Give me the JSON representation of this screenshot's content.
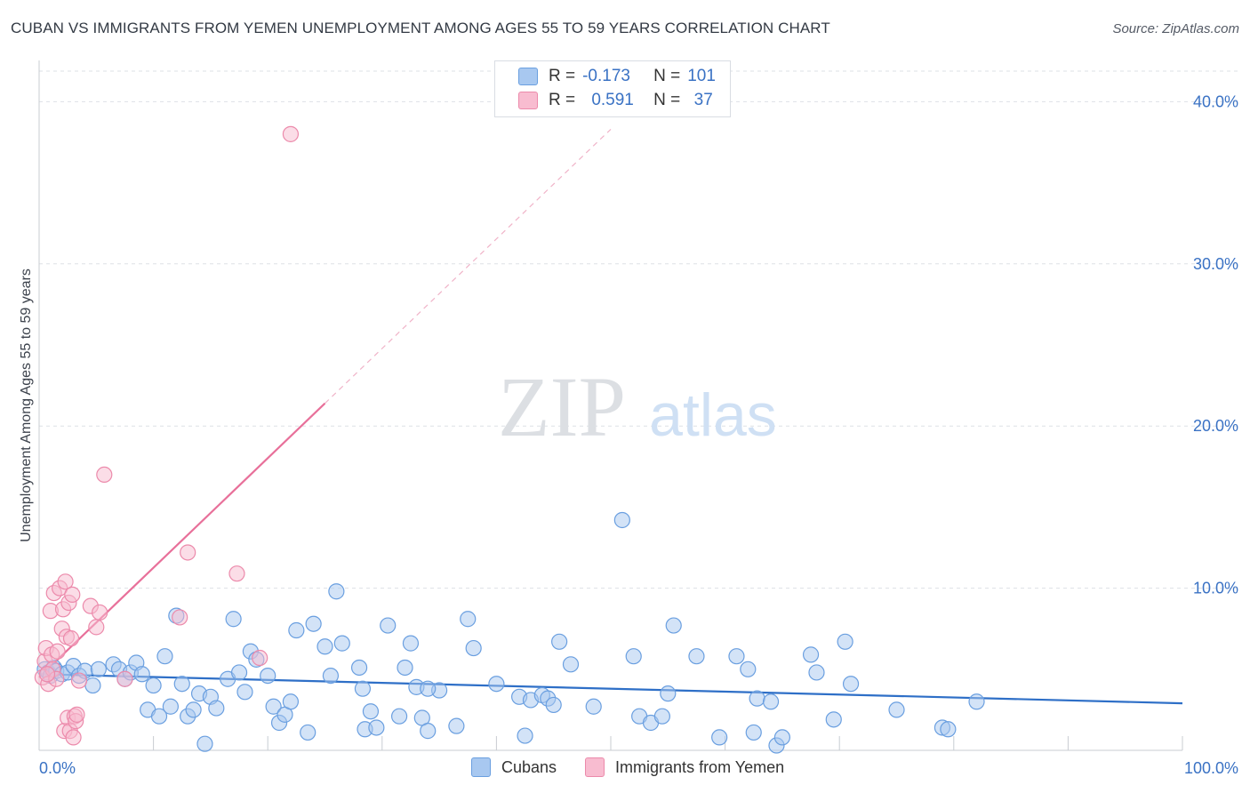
{
  "title": "CUBAN VS IMMIGRANTS FROM YEMEN UNEMPLOYMENT AMONG AGES 55 TO 59 YEARS CORRELATION CHART",
  "source": "Source: ZipAtlas.com",
  "watermark": {
    "zip": "ZIP",
    "atlas": "atlas"
  },
  "legend": {
    "rows": [
      {
        "r_label": "R =",
        "r_value": "-0.173",
        "n_label": "N =",
        "n_value": "101",
        "color": "#a8c8f0",
        "border": "#6a9fe0"
      },
      {
        "r_label": "R =",
        "r_value": "0.591",
        "n_label": "N =",
        "n_value": "37",
        "color": "#f8bcd0",
        "border": "#ec8aab"
      }
    ]
  },
  "chart_data": {
    "type": "scatter",
    "xlabel": "",
    "ylabel": "Unemployment Among Ages 55 to 59 years",
    "xlim": [
      0,
      100
    ],
    "ylim": [
      0,
      40
    ],
    "x_tick_labels": [
      "0.0%",
      "100.0%"
    ],
    "y_tick_labels": [
      "10.0%",
      "20.0%",
      "30.0%",
      "40.0%"
    ],
    "y_ticks": [
      10,
      20,
      30,
      40
    ],
    "grid": "horizontal dashed",
    "legend_position": "bottom",
    "series": [
      {
        "name": "Cubans",
        "color": "#6a9fe0",
        "fill": "#a8c8f0",
        "trend": {
          "x0": 0,
          "y0": 4.7,
          "x1": 100,
          "y1": 2.9
        },
        "points": [
          [
            0.5,
            5.0
          ],
          [
            0.8,
            4.8
          ],
          [
            1.0,
            4.6
          ],
          [
            1.3,
            5.1
          ],
          [
            1.5,
            4.9
          ],
          [
            2.0,
            4.7
          ],
          [
            2.5,
            4.8
          ],
          [
            3.0,
            5.2
          ],
          [
            3.5,
            4.6
          ],
          [
            4.0,
            4.9
          ],
          [
            4.7,
            4.0
          ],
          [
            5.2,
            5.0
          ],
          [
            6.5,
            5.3
          ],
          [
            7.0,
            5.0
          ],
          [
            7.5,
            4.4
          ],
          [
            8.0,
            4.8
          ],
          [
            8.5,
            5.4
          ],
          [
            9.0,
            4.7
          ],
          [
            9.5,
            2.5
          ],
          [
            10.0,
            4.0
          ],
          [
            10.5,
            2.1
          ],
          [
            11.0,
            5.8
          ],
          [
            11.5,
            2.7
          ],
          [
            12.0,
            8.3
          ],
          [
            12.5,
            4.1
          ],
          [
            13.0,
            2.1
          ],
          [
            13.5,
            2.5
          ],
          [
            14.0,
            3.5
          ],
          [
            14.5,
            0.4
          ],
          [
            15.0,
            3.3
          ],
          [
            15.5,
            2.6
          ],
          [
            16.5,
            4.4
          ],
          [
            17.0,
            8.1
          ],
          [
            17.5,
            4.8
          ],
          [
            18.0,
            3.6
          ],
          [
            18.5,
            6.1
          ],
          [
            19.0,
            5.6
          ],
          [
            20.0,
            4.6
          ],
          [
            20.5,
            2.7
          ],
          [
            21.0,
            1.7
          ],
          [
            21.5,
            2.2
          ],
          [
            22.0,
            3.0
          ],
          [
            22.5,
            7.4
          ],
          [
            23.5,
            1.1
          ],
          [
            24.0,
            7.8
          ],
          [
            25.0,
            6.4
          ],
          [
            25.5,
            4.6
          ],
          [
            26.0,
            9.8
          ],
          [
            26.5,
            6.6
          ],
          [
            28.0,
            5.1
          ],
          [
            28.3,
            3.8
          ],
          [
            28.5,
            1.3
          ],
          [
            29.0,
            2.4
          ],
          [
            29.5,
            1.4
          ],
          [
            30.5,
            7.7
          ],
          [
            31.5,
            2.1
          ],
          [
            32.0,
            5.1
          ],
          [
            32.5,
            6.6
          ],
          [
            33.0,
            3.9
          ],
          [
            33.5,
            2.0
          ],
          [
            34.0,
            1.2
          ],
          [
            35.0,
            3.7
          ],
          [
            36.5,
            1.5
          ],
          [
            37.5,
            8.1
          ],
          [
            38.0,
            6.3
          ],
          [
            40.0,
            4.1
          ],
          [
            42.0,
            3.3
          ],
          [
            42.5,
            0.9
          ],
          [
            43.0,
            3.1
          ],
          [
            44.0,
            3.4
          ],
          [
            44.5,
            3.2
          ],
          [
            45.0,
            2.8
          ],
          [
            45.5,
            6.7
          ],
          [
            46.5,
            5.3
          ],
          [
            48.5,
            2.7
          ],
          [
            51.0,
            14.2
          ],
          [
            52.0,
            5.8
          ],
          [
            52.5,
            2.1
          ],
          [
            53.5,
            1.7
          ],
          [
            54.5,
            2.1
          ],
          [
            55.0,
            3.5
          ],
          [
            55.5,
            7.7
          ],
          [
            57.5,
            5.8
          ],
          [
            59.5,
            0.8
          ],
          [
            61.0,
            5.8
          ],
          [
            62.0,
            5.0
          ],
          [
            62.5,
            1.1
          ],
          [
            62.8,
            3.2
          ],
          [
            64.0,
            3.0
          ],
          [
            64.5,
            0.3
          ],
          [
            65.0,
            0.8
          ],
          [
            67.5,
            5.9
          ],
          [
            68.0,
            4.8
          ],
          [
            69.5,
            1.9
          ],
          [
            70.5,
            6.7
          ],
          [
            71.0,
            4.1
          ],
          [
            75.0,
            2.5
          ],
          [
            79.0,
            1.4
          ],
          [
            79.5,
            1.3
          ],
          [
            82.0,
            3.0
          ],
          [
            34.0,
            3.8
          ]
        ]
      },
      {
        "name": "Immigrants from Yemen",
        "color": "#ec8aab",
        "fill": "#f8bcd0",
        "trend": {
          "x0": 0,
          "y0": 4.5,
          "x1": 25,
          "y1": 21.4
        },
        "trend_ext": {
          "x0": 25,
          "y0": 21.4,
          "x1": 50,
          "y1": 38.3
        },
        "points": [
          [
            0.3,
            4.5
          ],
          [
            0.5,
            5.5
          ],
          [
            0.6,
            6.3
          ],
          [
            0.8,
            4.1
          ],
          [
            1.0,
            8.6
          ],
          [
            1.1,
            5.9
          ],
          [
            1.2,
            5.0
          ],
          [
            1.3,
            9.7
          ],
          [
            1.5,
            4.4
          ],
          [
            1.6,
            6.1
          ],
          [
            1.8,
            10.0
          ],
          [
            2.0,
            7.5
          ],
          [
            2.1,
            8.7
          ],
          [
            2.2,
            1.2
          ],
          [
            2.3,
            10.4
          ],
          [
            2.4,
            7.0
          ],
          [
            2.5,
            2.0
          ],
          [
            2.6,
            9.1
          ],
          [
            2.7,
            1.2
          ],
          [
            2.8,
            6.9
          ],
          [
            2.9,
            9.6
          ],
          [
            3.0,
            0.8
          ],
          [
            3.1,
            2.1
          ],
          [
            3.2,
            1.8
          ],
          [
            3.3,
            2.2
          ],
          [
            3.5,
            4.3
          ],
          [
            4.5,
            8.9
          ],
          [
            5.0,
            7.6
          ],
          [
            5.3,
            8.5
          ],
          [
            5.7,
            17.0
          ],
          [
            7.5,
            4.4
          ],
          [
            12.3,
            8.2
          ],
          [
            13.0,
            12.2
          ],
          [
            17.3,
            10.9
          ],
          [
            19.3,
            5.7
          ],
          [
            22.0,
            38.0
          ],
          [
            0.7,
            4.7
          ]
        ]
      }
    ]
  }
}
